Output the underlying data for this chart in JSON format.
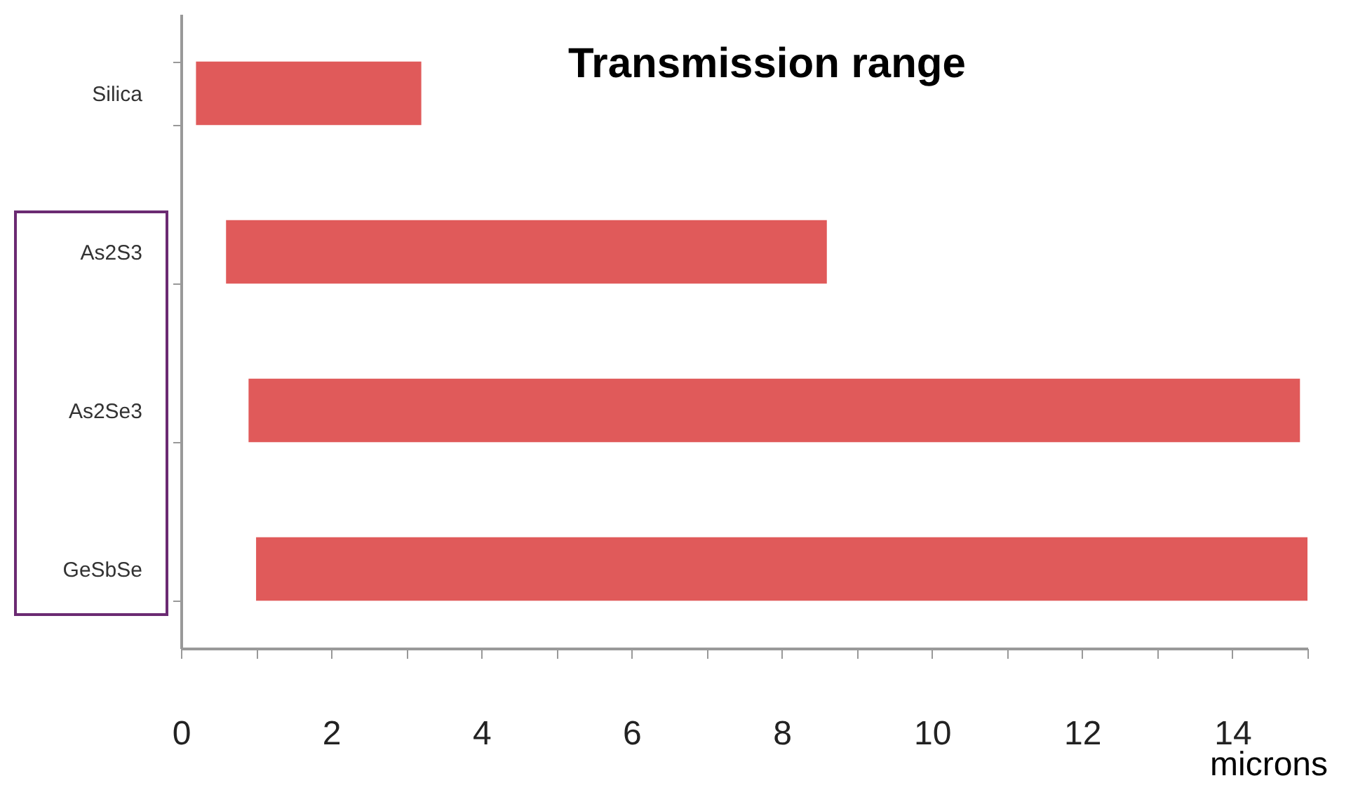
{
  "chart_data": {
    "type": "bar",
    "orientation": "horizontal",
    "title": "Transmission range",
    "xlabel": "microns",
    "categories": [
      "Silica",
      "As2S3",
      "As2Se3",
      "GeSbSe"
    ],
    "base": [
      0.2,
      0.6,
      0.9,
      1.0
    ],
    "values": [
      3.0,
      8.0,
      14.0,
      14.0
    ],
    "color": "#e05a5a",
    "xlim": [
      0,
      15
    ],
    "xticks": [
      0,
      {
        "value": 1,
        "label": null
      },
      2,
      {
        "value": 3,
        "label": null
      },
      4,
      {
        "value": 5,
        "label": null
      },
      6,
      {
        "value": 7,
        "label": null
      },
      8,
      {
        "value": 9,
        "label": null
      },
      10,
      {
        "value": 11,
        "label": null
      },
      12,
      {
        "value": 13,
        "label": null
      },
      14,
      {
        "value": 15,
        "label": null
      }
    ],
    "grid": false
  }
}
